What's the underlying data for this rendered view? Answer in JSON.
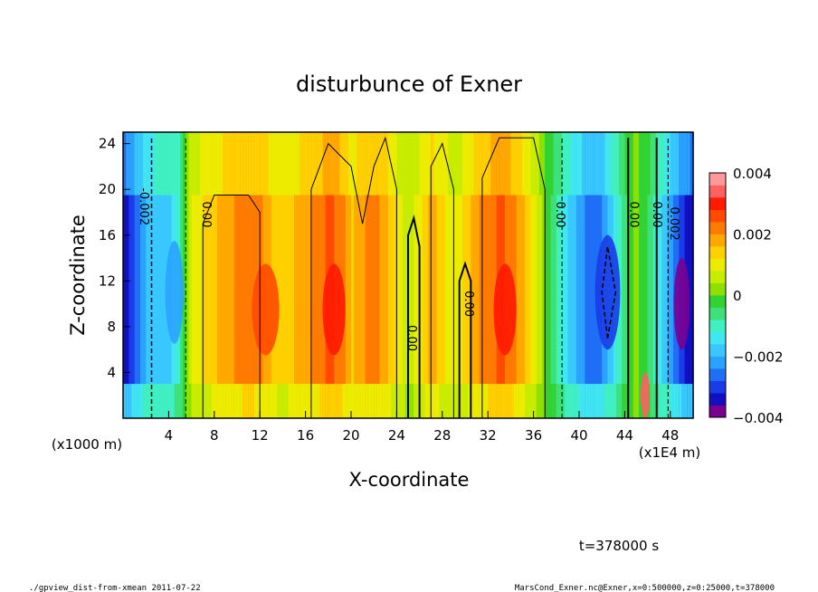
{
  "chart_data": {
    "type": "heatmap",
    "title": "disturbunce of Exner",
    "xlabel": "X-coordinate",
    "ylabel": "Z-coordinate",
    "x_unit": "(x1E4 m)",
    "y_unit": "(x1000 m)",
    "xlim": [
      0,
      50
    ],
    "ylim": [
      0,
      25
    ],
    "x_ticks": [
      4,
      8,
      12,
      16,
      20,
      24,
      28,
      32,
      36,
      40,
      44,
      48
    ],
    "y_ticks": [
      4,
      8,
      12,
      16,
      20,
      24
    ],
    "colorbar": {
      "range": [
        -0.004,
        0.004
      ],
      "tick_values": [
        0.004,
        0.002,
        0,
        -0.002,
        -0.004
      ],
      "tick_labels": [
        "0.004",
        "0.002",
        "0",
        "−0.002",
        "−0.004"
      ],
      "colors": [
        "#7a0090",
        "#1010c0",
        "#1a3ce8",
        "#1e6ff5",
        "#2aa3ff",
        "#38c8ff",
        "#40e6f0",
        "#40f0c0",
        "#3ee07a",
        "#33d233",
        "#8ee000",
        "#c8ec00",
        "#ecec00",
        "#ffd000",
        "#ffa800",
        "#ff7a00",
        "#ff4a00",
        "#ff1a00",
        "#ff6060",
        "#ff9999"
      ]
    },
    "column_profile_x": [
      0,
      1,
      2,
      3,
      4,
      5,
      5.5,
      6,
      7,
      8,
      9,
      10,
      11,
      12,
      13,
      14,
      15,
      16,
      17,
      18,
      19,
      20,
      21,
      22,
      23,
      24,
      25,
      26,
      27,
      28,
      29,
      30,
      31,
      32,
      33,
      34,
      35,
      36,
      37,
      38,
      39,
      40,
      41,
      42,
      43,
      44,
      45,
      46,
      47,
      48,
      49,
      50
    ],
    "column_profile_value": [
      -0.0036,
      -0.0028,
      -0.002,
      -0.0016,
      -0.0017,
      -0.0011,
      0.0001,
      0.0008,
      0.0012,
      0.0015,
      0.0018,
      0.0021,
      0.0023,
      0.0021,
      0.0016,
      0.0013,
      0.0016,
      0.0019,
      0.0021,
      0.0025,
      0.0023,
      0.0015,
      0.0019,
      0.0022,
      0.0018,
      0.0012,
      0.0005,
      0.0011,
      0.0018,
      0.0014,
      0.0008,
      0.0013,
      0.0019,
      0.0022,
      0.0025,
      0.0023,
      0.0017,
      0.001,
      0.0001,
      -0.0008,
      -0.0016,
      -0.0022,
      -0.0026,
      -0.0024,
      -0.0016,
      -0.0005,
      0.0002,
      -0.0004,
      -0.0014,
      -0.0022,
      -0.003,
      -0.0036
    ],
    "contour_labels": [
      {
        "x": 1.5,
        "z": 18.5,
        "text": "-0.002"
      },
      {
        "x": 7.0,
        "z": 17.8,
        "text": "0.00"
      },
      {
        "x": 25.0,
        "z": 7.0,
        "text": "0.00"
      },
      {
        "x": 30.0,
        "z": 10.0,
        "text": "0.00"
      },
      {
        "x": 38.0,
        "z": 17.8,
        "text": "0.00"
      },
      {
        "x": 44.5,
        "z": 17.8,
        "text": "0.00"
      },
      {
        "x": 46.5,
        "z": 17.8,
        "text": "0.00"
      },
      {
        "x": 48.0,
        "z": 17.0,
        "text": "0.002"
      }
    ]
  },
  "time_label": "t=378000 s",
  "footer_left": "./gpview_dist-from-xmean  2011-07-22",
  "footer_right": "MarsCond_Exner.nc@Exner,x=0:500000,z=0:25000,t=378000"
}
